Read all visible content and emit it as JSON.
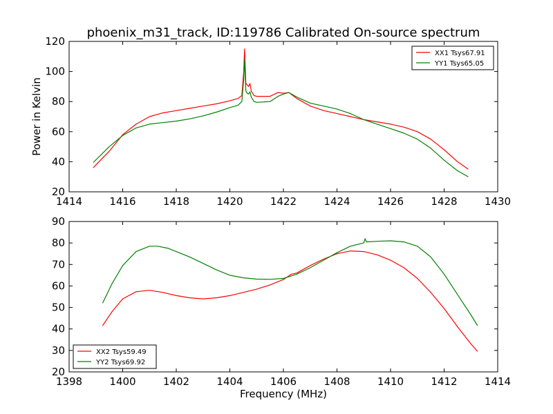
{
  "title": "phoenix_m31_track, ID:119786 Calibrated On-source spectrum",
  "chart_data": [
    {
      "type": "line",
      "ylabel": "Power in Kelvin",
      "xlabel": "",
      "xlim": [
        1414,
        1430
      ],
      "ylim": [
        20,
        120
      ],
      "xticks": [
        1414,
        1416,
        1418,
        1420,
        1422,
        1424,
        1426,
        1428,
        1430
      ],
      "yticks": [
        20,
        40,
        60,
        80,
        100,
        120
      ],
      "legend": "top-right",
      "series": [
        {
          "name": "XX1 Tsys67.91",
          "color": "#ff0000",
          "x": [
            1414.9,
            1415.5,
            1416.0,
            1416.5,
            1417.0,
            1417.5,
            1418.0,
            1418.5,
            1419.0,
            1419.5,
            1420.0,
            1420.3,
            1420.45,
            1420.52,
            1420.55,
            1420.6,
            1420.65,
            1420.7,
            1420.75,
            1420.8,
            1420.9,
            1421.0,
            1421.5,
            1421.8,
            1422.0,
            1422.2,
            1422.5,
            1423.0,
            1423.5,
            1424.0,
            1424.5,
            1425.0,
            1425.5,
            1426.0,
            1426.5,
            1427.0,
            1427.5,
            1428.0,
            1428.5,
            1428.9
          ],
          "values": [
            36,
            47,
            58,
            65,
            70,
            72.5,
            74,
            75.5,
            77,
            78.5,
            80.5,
            82,
            84,
            100,
            115,
            92,
            91,
            90,
            92,
            87,
            84,
            83.5,
            83.5,
            86,
            85.5,
            86,
            82,
            77,
            74,
            72,
            70,
            68,
            66.5,
            65,
            63,
            60,
            55,
            48,
            40,
            35
          ]
        },
        {
          "name": "YY1 Tsys65.05",
          "color": "#008000",
          "x": [
            1414.9,
            1415.5,
            1416.0,
            1416.5,
            1417.0,
            1417.5,
            1418.0,
            1418.5,
            1419.0,
            1419.5,
            1420.0,
            1420.3,
            1420.45,
            1420.52,
            1420.55,
            1420.6,
            1420.65,
            1420.7,
            1420.75,
            1420.8,
            1420.9,
            1421.0,
            1421.5,
            1421.8,
            1422.0,
            1422.2,
            1422.5,
            1423.0,
            1423.5,
            1424.0,
            1424.5,
            1425.0,
            1425.5,
            1426.0,
            1426.5,
            1427.0,
            1427.5,
            1428.0,
            1428.5,
            1428.9
          ],
          "values": [
            39.5,
            50,
            57.5,
            62.5,
            65,
            66,
            67,
            68.5,
            70.5,
            73,
            76,
            77.5,
            80,
            95,
            108,
            87,
            85.5,
            85,
            86.5,
            83,
            80,
            79.5,
            80,
            83.5,
            85,
            86,
            83,
            79,
            77,
            75,
            72,
            68,
            65,
            62,
            59,
            55,
            49,
            41,
            34,
            30
          ]
        }
      ]
    },
    {
      "type": "line",
      "xlabel": "Frequency (MHz)",
      "ylabel": "",
      "xlim": [
        1398,
        1414
      ],
      "ylim": [
        20,
        90
      ],
      "xticks": [
        1398,
        1400,
        1402,
        1404,
        1406,
        1408,
        1410,
        1412,
        1414
      ],
      "yticks": [
        20,
        30,
        40,
        50,
        60,
        70,
        80,
        90
      ],
      "legend": "bottom-left",
      "series": [
        {
          "name": "XX2 Tsys59.49",
          "color": "#ff0000",
          "x": [
            1399.25,
            1399.6,
            1400.0,
            1400.5,
            1401.0,
            1401.5,
            1402.0,
            1402.5,
            1403.0,
            1403.5,
            1404.0,
            1404.5,
            1405.0,
            1405.5,
            1406.0,
            1406.3,
            1406.5,
            1407.0,
            1407.5,
            1408.0,
            1408.5,
            1409.0,
            1409.5,
            1410.0,
            1410.5,
            1411.0,
            1411.5,
            1412.0,
            1412.5,
            1413.0,
            1413.25
          ],
          "values": [
            41.5,
            48,
            54,
            57.3,
            58,
            57,
            55.5,
            54.5,
            54,
            54.5,
            55.5,
            57,
            58.5,
            60.5,
            63,
            65.5,
            66,
            69.5,
            72.5,
            75,
            76.3,
            76,
            74.5,
            72,
            68.5,
            63.5,
            57,
            49.5,
            41,
            33,
            29.5
          ]
        },
        {
          "name": "YY2 Tsys69.92",
          "color": "#008000",
          "x": [
            1399.25,
            1399.6,
            1400.0,
            1400.5,
            1401.0,
            1401.3,
            1401.7,
            1402.0,
            1402.5,
            1403.0,
            1403.5,
            1404.0,
            1404.5,
            1405.0,
            1405.5,
            1406.0,
            1406.5,
            1407.0,
            1407.5,
            1408.0,
            1408.5,
            1409.0,
            1409.05,
            1409.1,
            1409.5,
            1410.0,
            1410.5,
            1411.0,
            1411.5,
            1412.0,
            1412.5,
            1413.0,
            1413.25
          ],
          "values": [
            52,
            61,
            69.5,
            76,
            78.5,
            78.5,
            77.5,
            76,
            73.5,
            70.5,
            67.5,
            65,
            63.8,
            63.2,
            63.1,
            63.5,
            65.5,
            68.5,
            72,
            75.5,
            78.5,
            80,
            82,
            80.5,
            80.8,
            81,
            80.5,
            78.5,
            73.5,
            65.5,
            56,
            46.5,
            41.5
          ]
        }
      ]
    }
  ]
}
